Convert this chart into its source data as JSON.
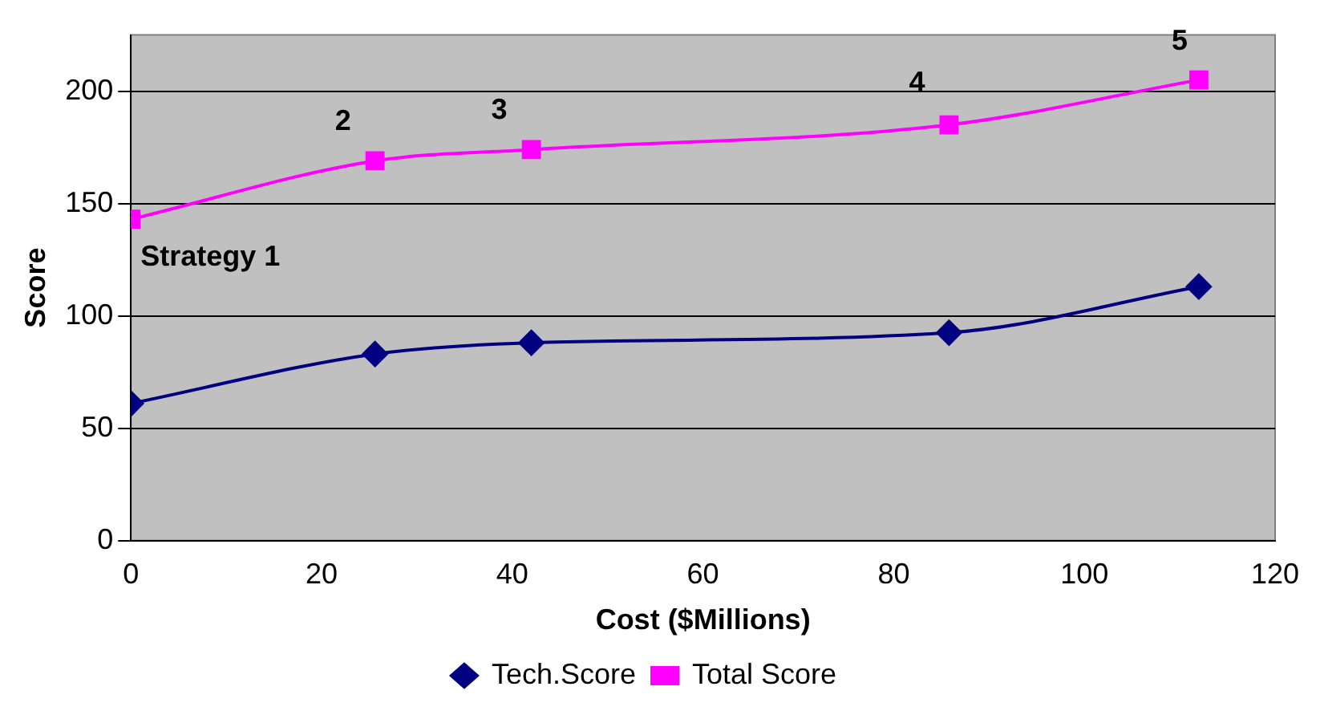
{
  "chart_data": {
    "type": "line",
    "xlabel": "Cost ($Millions)",
    "ylabel": "Score",
    "xlim": [
      0,
      120
    ],
    "xticks": [
      0,
      20,
      40,
      60,
      80,
      100,
      120
    ],
    "ylim": [
      0,
      225
    ],
    "yticks": [
      0,
      50,
      100,
      150,
      200
    ],
    "grid": "y",
    "legend": "bottom",
    "line_style": "solid",
    "x": [
      0,
      25.6,
      42,
      85.8,
      112
    ],
    "series": [
      {
        "name": "Tech.Score",
        "color": "#000080",
        "marker": "diamond",
        "values": [
          61,
          83,
          88,
          92.5,
          113
        ]
      },
      {
        "name": "Total Score",
        "color": "#ff00ff",
        "marker": "square",
        "values": [
          143,
          169,
          174,
          185,
          205
        ]
      }
    ],
    "annotations": [
      {
        "text": "Strategy 1",
        "x": 0,
        "y": 143
      },
      {
        "text": "2",
        "x": 25.6,
        "y": 169
      },
      {
        "text": "3",
        "x": 42,
        "y": 174
      },
      {
        "text": "4",
        "x": 85.8,
        "y": 185
      },
      {
        "text": "5",
        "x": 112,
        "y": 205
      }
    ]
  }
}
